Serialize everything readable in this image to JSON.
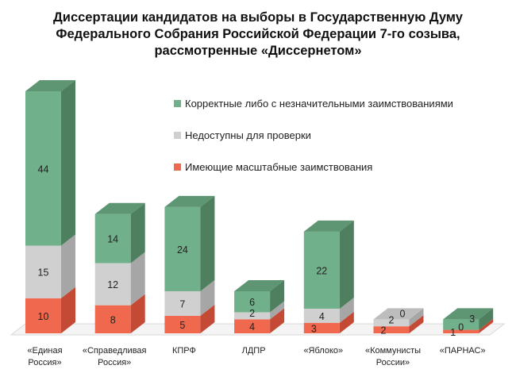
{
  "chart_data": {
    "type": "bar",
    "stacked": true,
    "style": "3d",
    "title_lines": [
      "Диссертации кандидатов на выборы в Государственную Думу",
      "Федерального Собрания Российской Федерации 7-го созыва,",
      "рассмотренные «Диссернетом»"
    ],
    "categories": [
      [
        "«Единая",
        "Россия»"
      ],
      [
        "«Справедливая",
        "Россия»"
      ],
      [
        "КПРФ"
      ],
      [
        "ЛДПР"
      ],
      [
        "«Яблоко»"
      ],
      [
        "«Коммунисты",
        "России»"
      ],
      [
        "«ПАРНАС»"
      ]
    ],
    "series": [
      {
        "name": "Имеющие масштабные заимствования",
        "color": "#f0694f",
        "side": "#c54a36",
        "top": "#d85a44",
        "values": [
          10,
          8,
          5,
          4,
          3,
          2,
          1
        ]
      },
      {
        "name": "Недоступны для проверки",
        "color": "#d0d0d0",
        "side": "#a6a6a6",
        "top": "#bdbdbd",
        "values": [
          15,
          12,
          7,
          2,
          4,
          2,
          0
        ]
      },
      {
        "name": "Корректные либо с незначительными заимствованиями",
        "color": "#70b08a",
        "side": "#4e7f5e",
        "top": "#5e9572",
        "values": [
          44,
          14,
          24,
          6,
          22,
          0,
          3
        ]
      }
    ],
    "legend_order": [
      2,
      1,
      0
    ],
    "legend_position": "top-right",
    "data_labels": true,
    "grid": false,
    "ylim": [
      0,
      70
    ]
  }
}
